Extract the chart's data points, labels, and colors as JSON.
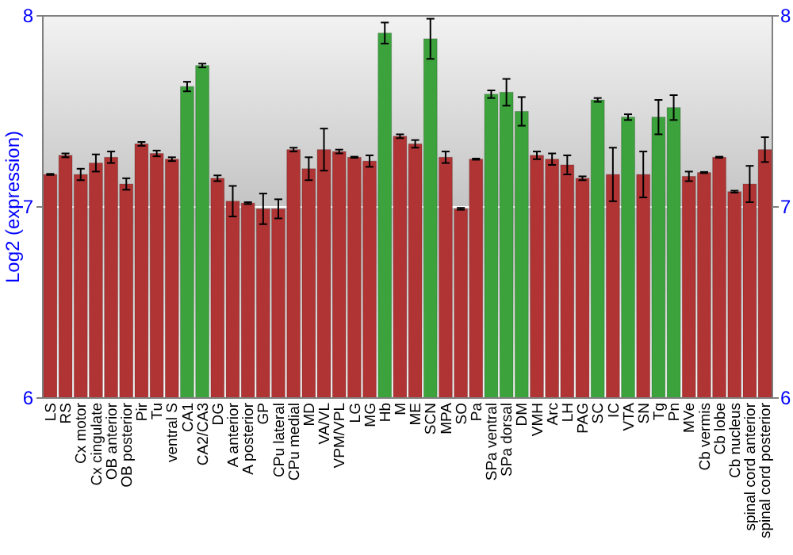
{
  "chart_data": {
    "type": "bar",
    "ylabel": "Log2 (expression)",
    "categories": [
      "LS",
      "RS",
      "Cx motor",
      "Cx cingulate",
      "OB anterior",
      "OB posterior",
      "Pir",
      "Tu",
      "ventral S",
      "CA1",
      "CA2/CA3",
      "DG",
      "A anterior",
      "A posterior",
      "GP",
      "CPu lateral",
      "CPu medial",
      "MD",
      "VA/VL",
      "VPM/VPL",
      "LG",
      "MG",
      "Hb",
      "M",
      "ME",
      "SCN",
      "MPA",
      "SO",
      "Pa",
      "SPa ventral",
      "SPa dorsal",
      "DM",
      "VMH",
      "Arc",
      "LH",
      "PAG",
      "SC",
      "IC",
      "VTA",
      "SN",
      "Tg",
      "Pn",
      "MVe",
      "Cb vermis",
      "Cb lobe",
      "Cb nucleus",
      "spinal cord anterior",
      "spinal cord posterior"
    ],
    "values": [
      7.17,
      7.27,
      7.17,
      7.23,
      7.26,
      7.12,
      7.33,
      7.28,
      7.25,
      7.63,
      7.74,
      7.15,
      7.03,
      7.02,
      6.99,
      6.99,
      7.3,
      7.2,
      7.3,
      7.29,
      7.26,
      7.24,
      7.91,
      7.37,
      7.33,
      7.88,
      7.26,
      6.99,
      7.25,
      7.59,
      7.6,
      7.5,
      7.27,
      7.25,
      7.22,
      7.15,
      7.56,
      7.17,
      7.47,
      7.17,
      7.47,
      7.52,
      7.16,
      7.18,
      7.26,
      7.08,
      7.12,
      7.3
    ],
    "errors": [
      0.003,
      0.01,
      0.03,
      0.045,
      0.03,
      0.03,
      0.01,
      0.015,
      0.01,
      0.025,
      0.01,
      0.015,
      0.08,
      0.005,
      0.08,
      0.05,
      0.01,
      0.06,
      0.11,
      0.01,
      0.003,
      0.03,
      0.055,
      0.01,
      0.02,
      0.105,
      0.03,
      0.005,
      0.003,
      0.02,
      0.07,
      0.075,
      0.02,
      0.03,
      0.05,
      0.01,
      0.01,
      0.14,
      0.015,
      0.12,
      0.09,
      0.065,
      0.025,
      0.003,
      0.003,
      0.005,
      0.095,
      0.065
    ],
    "colors": [
      "#b03434",
      "#b03434",
      "#b03434",
      "#b03434",
      "#b03434",
      "#b03434",
      "#b03434",
      "#b03434",
      "#b03434",
      "#3ca23c",
      "#3ca23c",
      "#b03434",
      "#b03434",
      "#b03434",
      "#b03434",
      "#b03434",
      "#b03434",
      "#b03434",
      "#b03434",
      "#b03434",
      "#b03434",
      "#b03434",
      "#3ca23c",
      "#b03434",
      "#b03434",
      "#3ca23c",
      "#b03434",
      "#b03434",
      "#b03434",
      "#3ca23c",
      "#3ca23c",
      "#3ca23c",
      "#b03434",
      "#b03434",
      "#b03434",
      "#b03434",
      "#3ca23c",
      "#b03434",
      "#3ca23c",
      "#b03434",
      "#3ca23c",
      "#3ca23c",
      "#b03434",
      "#b03434",
      "#b03434",
      "#b03434",
      "#b03434",
      "#b03434"
    ],
    "ylim": [
      6,
      8
    ],
    "yticks": [
      6,
      7,
      8
    ],
    "y2lim": [
      6,
      8
    ],
    "y2ticks": [
      6,
      7,
      8
    ],
    "grid": "y"
  }
}
